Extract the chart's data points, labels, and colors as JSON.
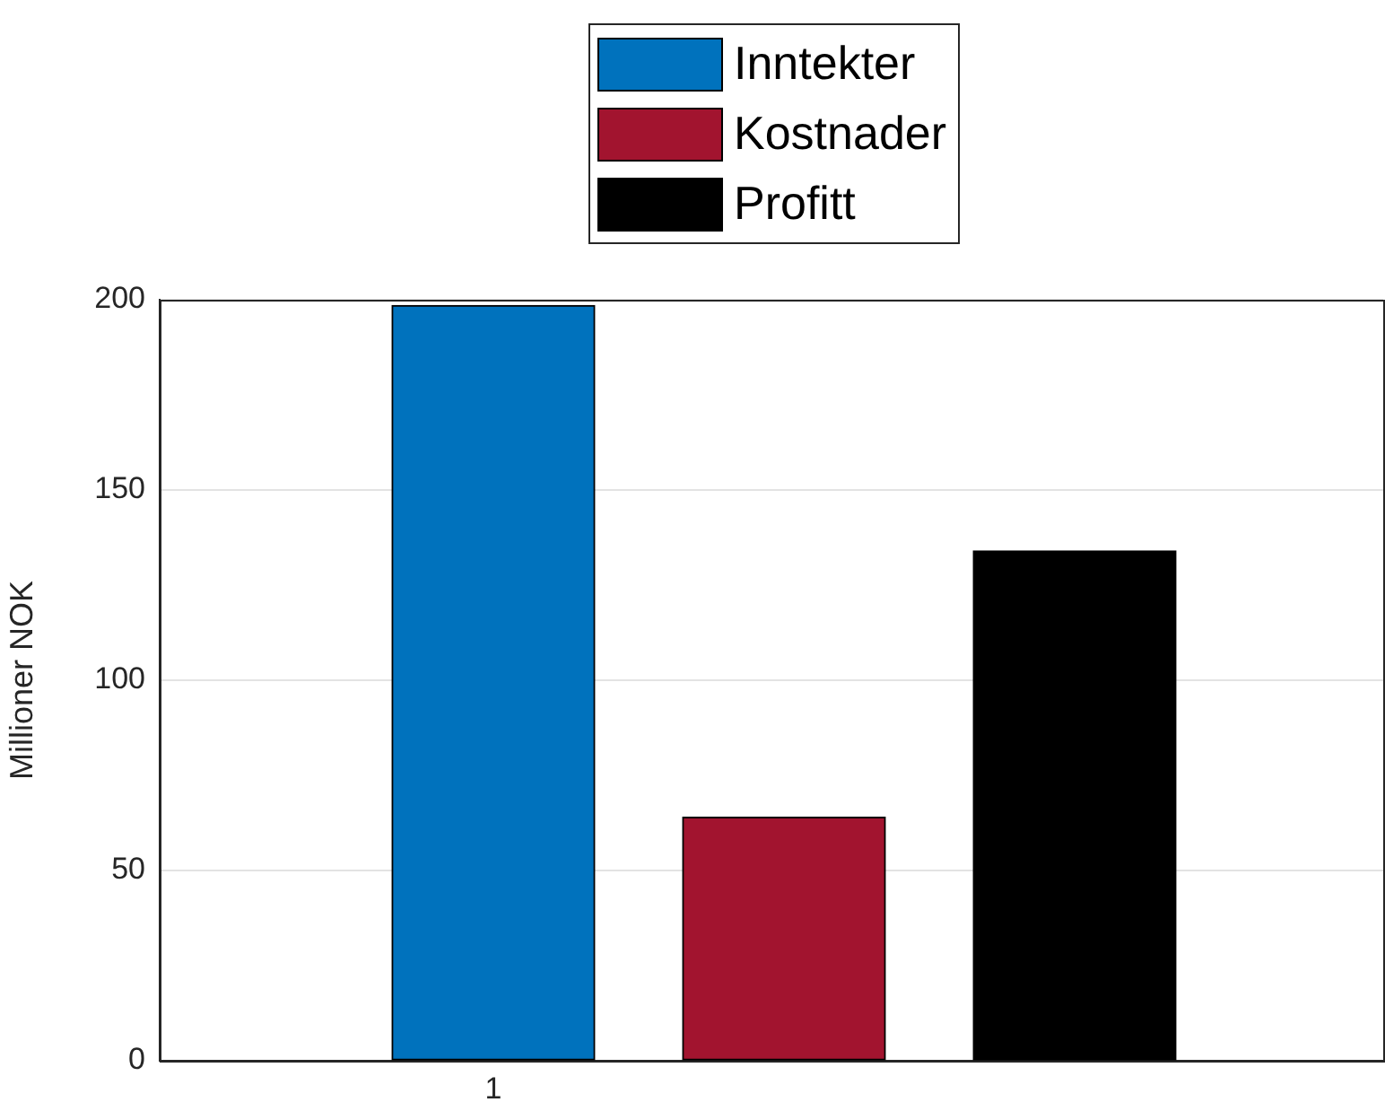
{
  "chart_data": {
    "type": "bar",
    "ylabel": "Millioner NOK",
    "categories": [
      "1",
      null,
      null
    ],
    "series": [
      {
        "name": "Inntekter",
        "color": "#0072bd",
        "values": [
          198.5,
          null,
          null
        ]
      },
      {
        "name": "Kostnader",
        "color": "#a2142f",
        "values": [
          null,
          64,
          null
        ]
      },
      {
        "name": "Profitt",
        "color": "#000000",
        "values": [
          null,
          null,
          134
        ]
      }
    ],
    "ylim": [
      0,
      200
    ],
    "yticks": [
      0,
      50,
      100,
      150,
      200
    ],
    "grid": "y",
    "legend": "top"
  }
}
